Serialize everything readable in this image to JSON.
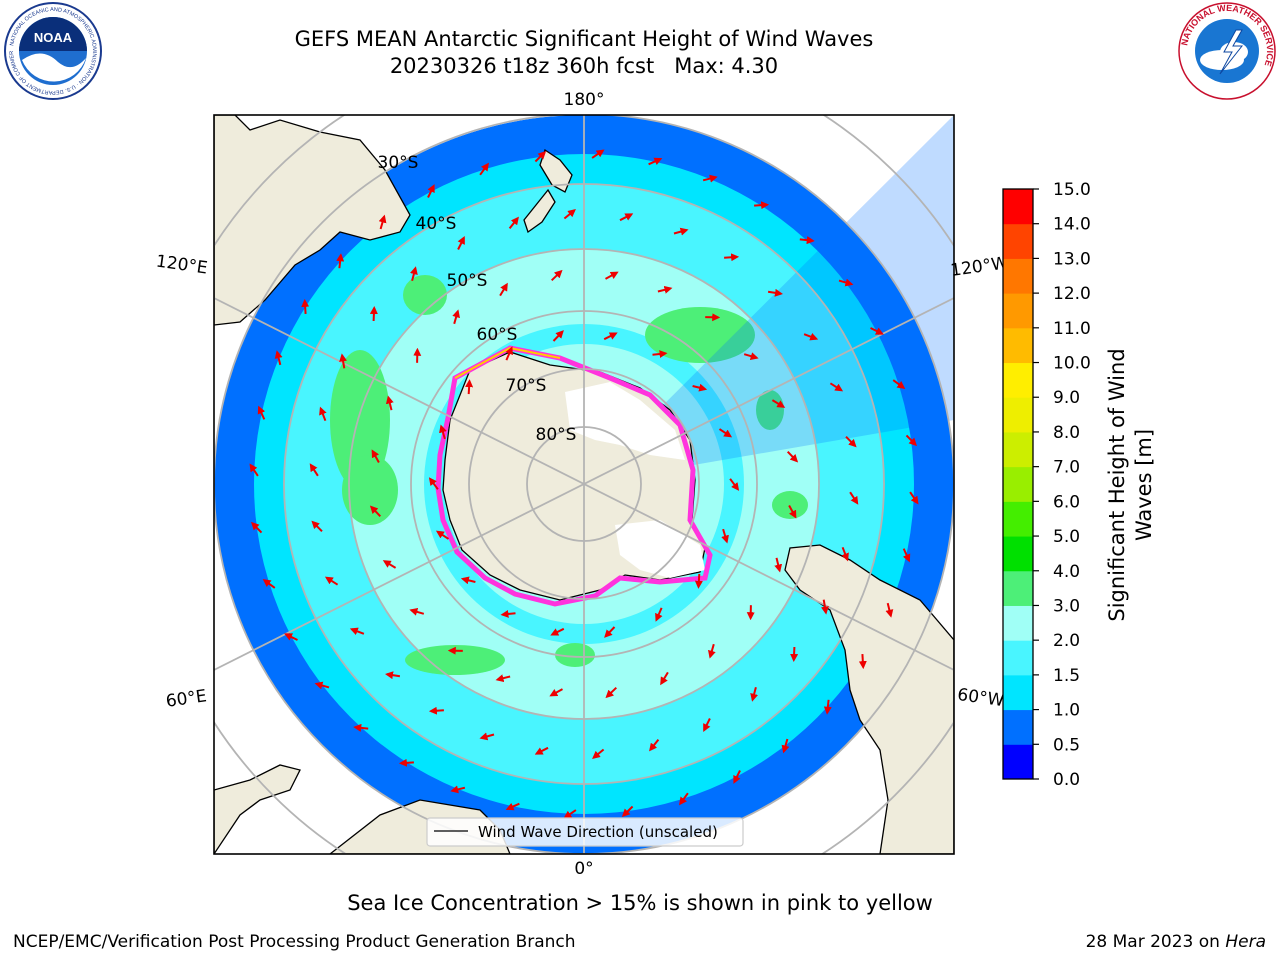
{
  "title": {
    "line1": "GEFS MEAN Antarctic Significant Height of Wind Waves",
    "line2": "20230326 t18z 360h fcst   Max: 4.30"
  },
  "logos": {
    "left": {
      "icon": "noaa-logo",
      "text": "NOAA",
      "ring_text": "NATIONAL OCEANIC AND ATMOSPHERIC ADMINISTRATION · U.S. DEPARTMENT OF COMMERCE"
    },
    "right": {
      "icon": "nws-logo",
      "ring_text": "NATIONAL WEATHER SERVICE"
    }
  },
  "map": {
    "projection": "south polar stereographic",
    "longitude_labels": {
      "top": "180°",
      "bottom": "0°",
      "upper_left": "120°E",
      "upper_right": "120°W",
      "lower_left": "60°E",
      "lower_right": "60°W"
    },
    "latitude_labels": [
      "30°S",
      "40°S",
      "50°S",
      "60°S",
      "70°S",
      "80°S"
    ],
    "colors": {
      "land": "#efecdc",
      "ocean_0_5": "#0070ff",
      "ocean_1_0": "#00e5ff",
      "ocean_1_5": "#49f5ff",
      "ocean_2_0": "#a0fff6",
      "ocean_3_0": "#4def78",
      "ice": "#ff33dd",
      "arrow": "#ee0000",
      "grid": "#b4b4b4"
    },
    "legend_label": "Wind Wave Direction (unscaled)"
  },
  "colorbar": {
    "label": "Significant Height of Wind Waves [m]",
    "ticks": [
      "0.0",
      "0.5",
      "1.0",
      "1.5",
      "2.0",
      "3.0",
      "4.0",
      "5.0",
      "6.0",
      "7.0",
      "8.0",
      "9.0",
      "10.0",
      "11.0",
      "12.0",
      "13.0",
      "14.0",
      "15.0"
    ],
    "colors": [
      "#0000ff",
      "#0070ff",
      "#00e5ff",
      "#49f5ff",
      "#a0fff6",
      "#4def78",
      "#00e000",
      "#44ee00",
      "#99ee00",
      "#ccee00",
      "#eeee00",
      "#ffee00",
      "#ffbb00",
      "#ff9900",
      "#ff7700",
      "#ff4400",
      "#ff0000"
    ]
  },
  "footer": {
    "note": "Sea Ice Concentration > 15% is shown in pink to yellow",
    "credit": "NCEP/EMC/Verification Post Processing Product Generation Branch",
    "date": "28 Mar 2023 on ",
    "host": "Hera"
  }
}
